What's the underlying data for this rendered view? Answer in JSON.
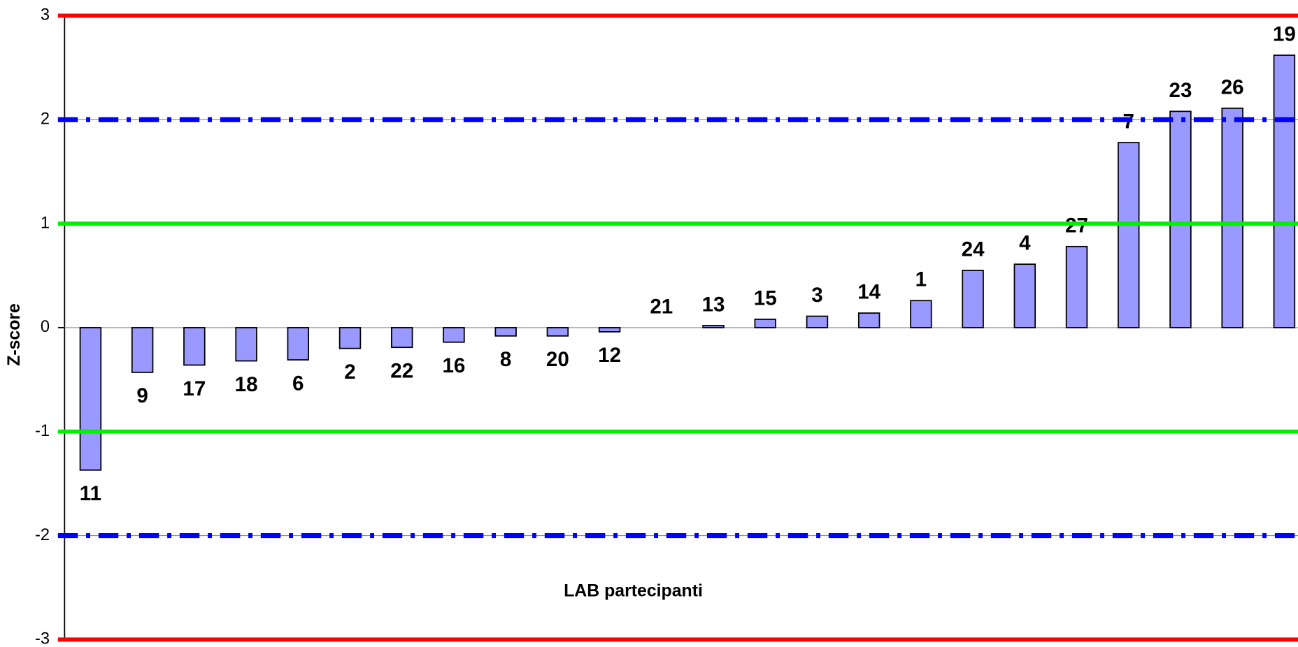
{
  "chart_data": {
    "type": "bar",
    "x_label": "LAB partecipanti",
    "y_label": "Z-score",
    "categories": [
      "11",
      "9",
      "17",
      "18",
      "6",
      "2",
      "22",
      "16",
      "8",
      "20",
      "12",
      "21",
      "13",
      "15",
      "3",
      "14",
      "1",
      "24",
      "4",
      "27",
      "7",
      "23",
      "26",
      "19"
    ],
    "values": [
      -1.37,
      -0.43,
      -0.36,
      -0.32,
      -0.31,
      -0.2,
      -0.19,
      -0.14,
      -0.08,
      -0.08,
      -0.04,
      0,
      0.02,
      0.08,
      0.11,
      0.14,
      0.26,
      0.55,
      0.61,
      0.78,
      1.78,
      2.08,
      2.11,
      2.62
    ],
    "color": "#9999ff",
    "ylim": [
      -3,
      3
    ],
    "yticks": [
      -3,
      -2,
      -1,
      0,
      1,
      2,
      3
    ],
    "reference_lines": [
      {
        "value": 3,
        "color": "#ff0000",
        "style": "solid"
      },
      {
        "value": -3,
        "color": "#ff0000",
        "style": "solid"
      },
      {
        "value": 1,
        "color": "#00ee00",
        "style": "solid"
      },
      {
        "value": -1,
        "color": "#00ee00",
        "style": "solid"
      },
      {
        "value": 2,
        "color": "#0000ff",
        "style": "dashdot"
      },
      {
        "value": -2,
        "color": "#0000ff",
        "style": "dashdot"
      }
    ]
  }
}
